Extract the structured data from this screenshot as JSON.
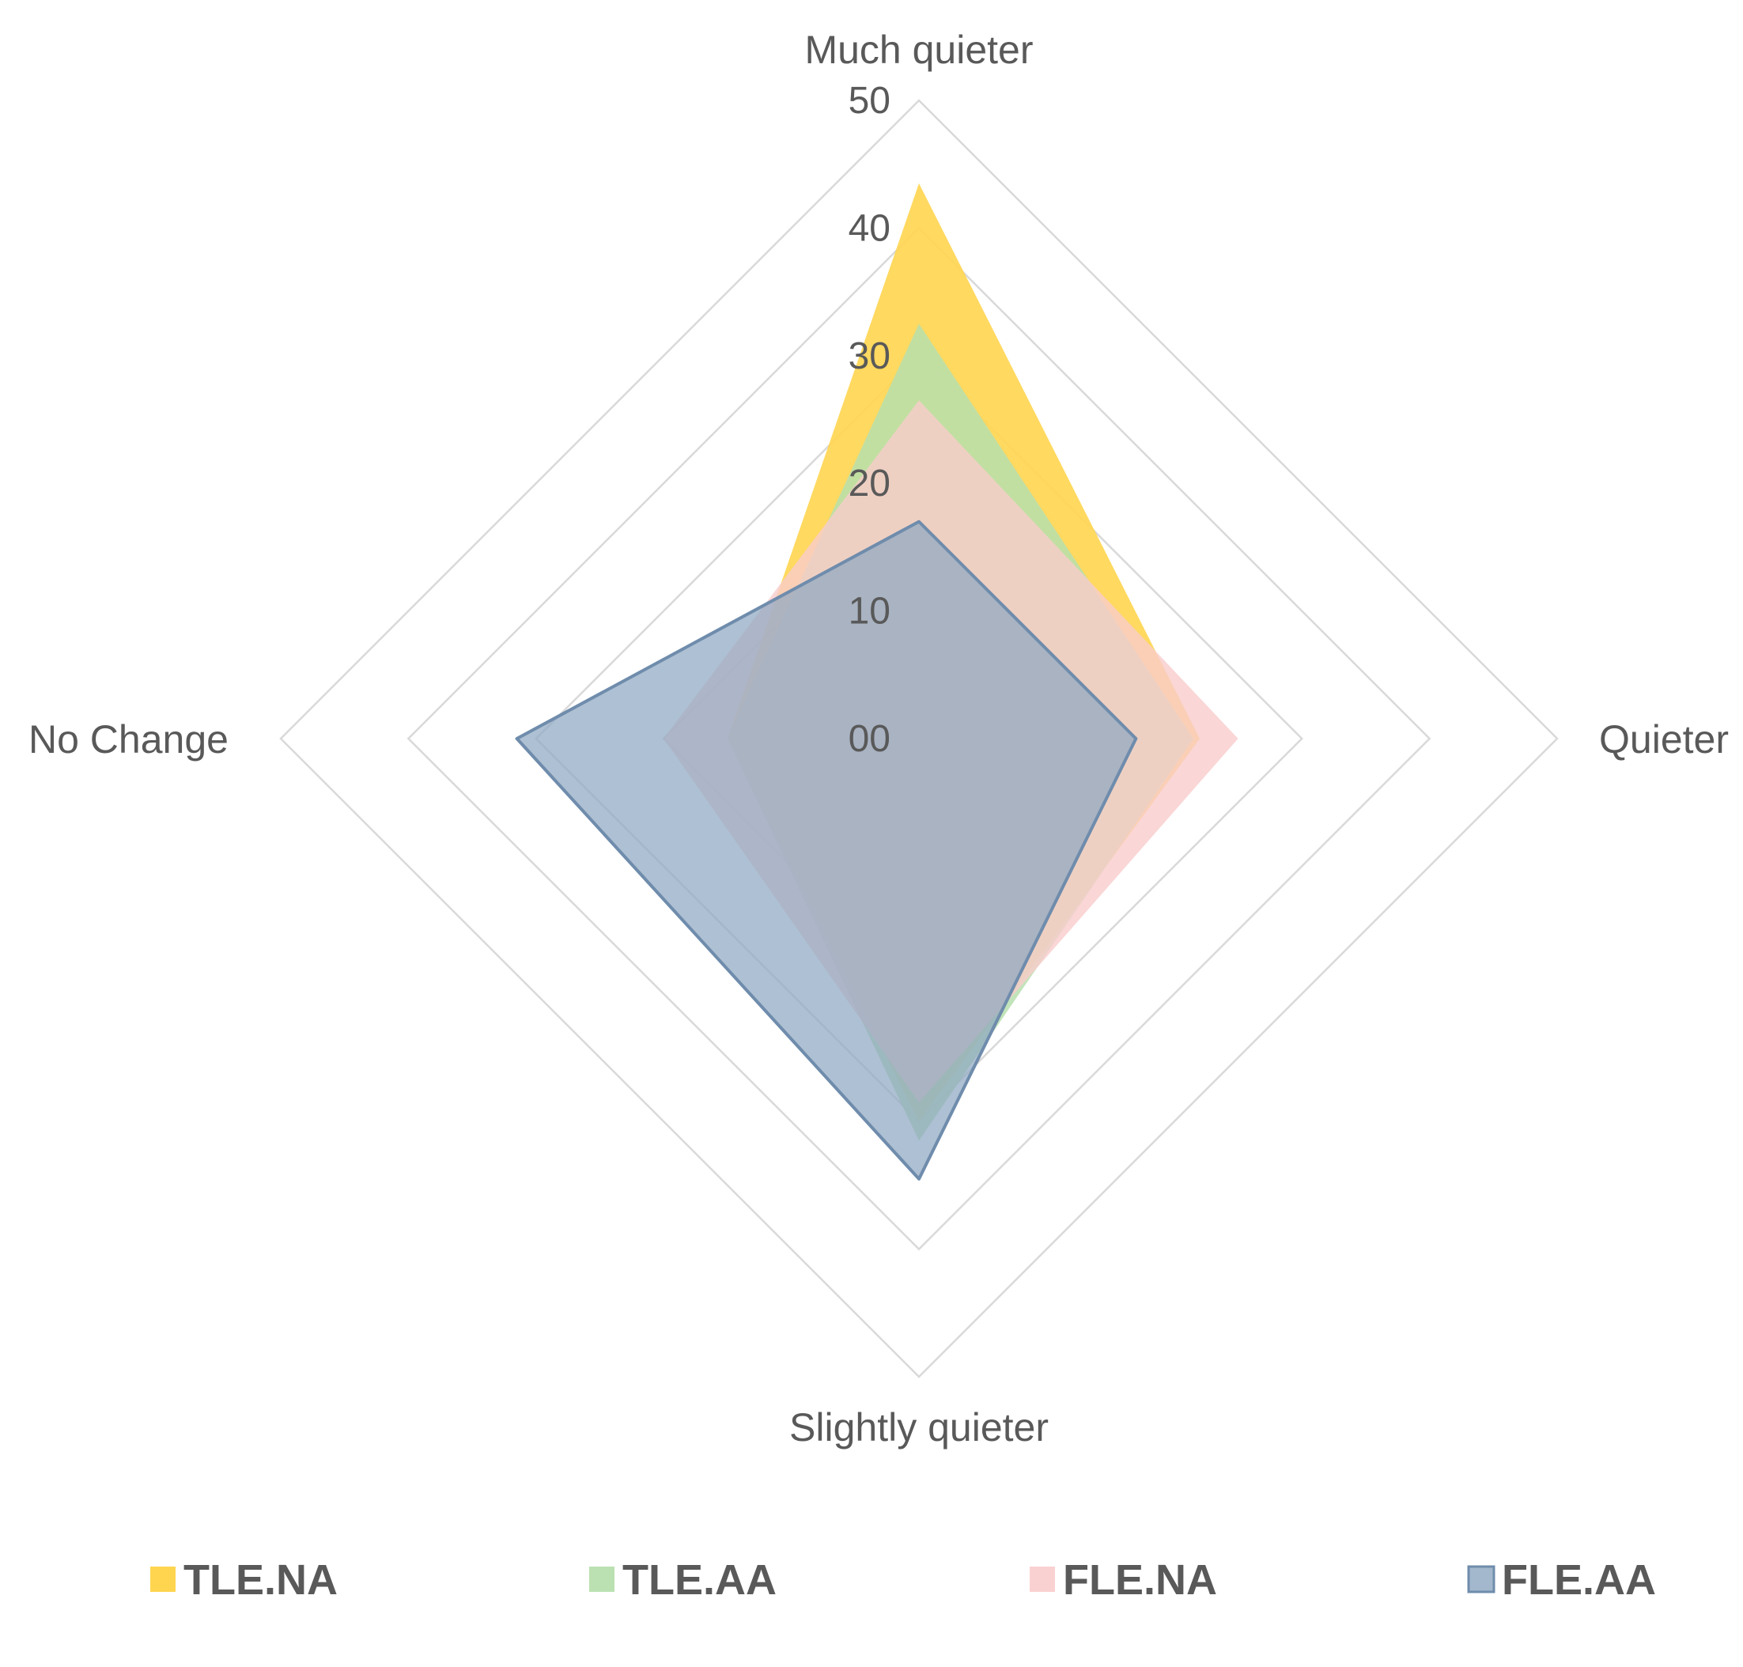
{
  "chart_data": {
    "type": "radar",
    "axes": [
      "Much quieter",
      "Quieter",
      "Slightly quieter",
      "No Change"
    ],
    "tick_labels": [
      "00",
      "10",
      "20",
      "30",
      "40",
      "50"
    ],
    "range": [
      0,
      50
    ],
    "grid": true,
    "legend_position": "bottom",
    "series": [
      {
        "name": "TLE.NA",
        "color": "#FFD54F",
        "opacity": 0.9,
        "stroke": false,
        "values": [
          43.5,
          22,
          30,
          15
        ]
      },
      {
        "name": "TLE.AA",
        "color": "#B7DFAE",
        "opacity": 0.85,
        "stroke": false,
        "values": [
          32.5,
          21.5,
          31.5,
          15
        ]
      },
      {
        "name": "FLE.NA",
        "color": "#F9CCCC",
        "opacity": 0.8,
        "stroke": false,
        "values": [
          26.5,
          25,
          28.5,
          20
        ]
      },
      {
        "name": "FLE.AA",
        "color": "#8FA8C2",
        "opacity": 0.72,
        "stroke": true,
        "stroke_color": "#6F8CAC",
        "values": [
          17,
          17,
          34.5,
          31.5
        ]
      }
    ]
  }
}
